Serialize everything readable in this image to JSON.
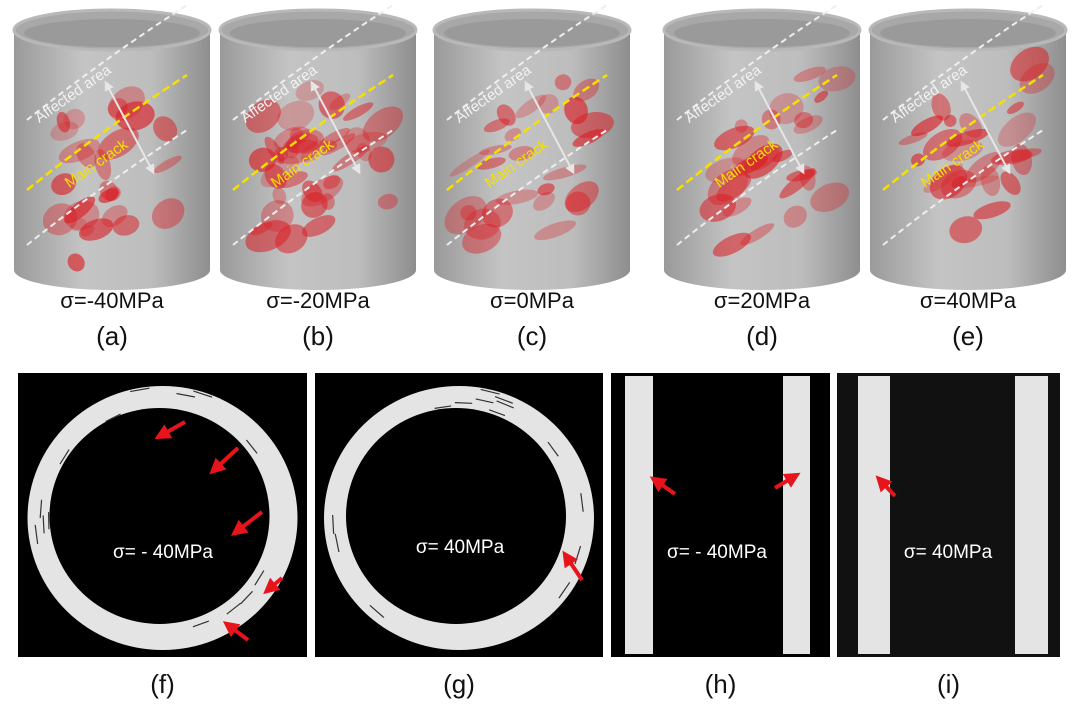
{
  "top_panels": [
    {
      "sigma": "σ=-40MPa",
      "label": "(a)",
      "affected": "Affected area",
      "crack": "Main crack"
    },
    {
      "sigma": "σ=-20MPa",
      "label": "(b)",
      "affected": "Affected area",
      "crack": "Main crack"
    },
    {
      "sigma": "σ=0MPa",
      "label": "(c)",
      "affected": "Affected area",
      "crack": "Main crack"
    },
    {
      "sigma": "σ=20MPa",
      "label": "(d)",
      "affected": "Affected area",
      "crack": "Main crack"
    },
    {
      "sigma": "σ=40MPa",
      "label": "(e)",
      "affected": "Affected area",
      "crack": "Main crack"
    }
  ],
  "bottom_panels": [
    {
      "sigma": "σ= - 40MPa",
      "label": "(f)"
    },
    {
      "sigma": "σ= 40MPa",
      "label": "(g)"
    },
    {
      "sigma": "σ= - 40MPa",
      "label": "(h)"
    },
    {
      "sigma": "σ= 40MPa",
      "label": "(i)"
    }
  ]
}
